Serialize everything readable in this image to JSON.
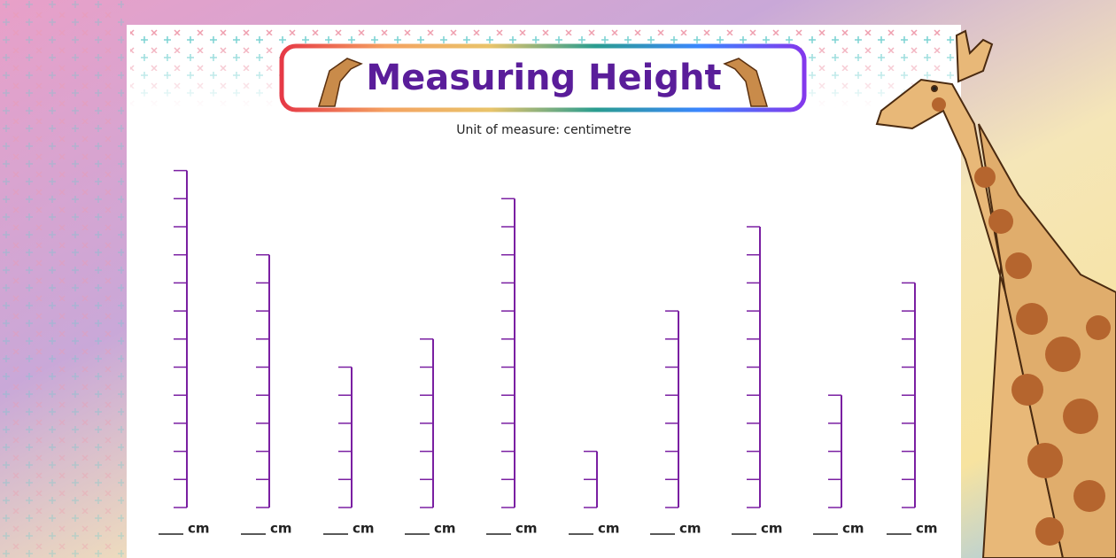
{
  "header": {
    "title": "Measuring Height",
    "subtitle": "Unit of measure: centimetre"
  },
  "rulers": [
    {
      "height": 12,
      "unit": "cm"
    },
    {
      "height": 9,
      "unit": "cm"
    },
    {
      "height": 5,
      "unit": "cm"
    },
    {
      "height": 6,
      "unit": "cm"
    },
    {
      "height": 11,
      "unit": "cm"
    },
    {
      "height": 2,
      "unit": "cm"
    },
    {
      "height": 7,
      "unit": "cm"
    },
    {
      "height": 10,
      "unit": "cm"
    },
    {
      "height": 4,
      "unit": "cm"
    },
    {
      "height": 8,
      "unit": "cm"
    }
  ]
}
